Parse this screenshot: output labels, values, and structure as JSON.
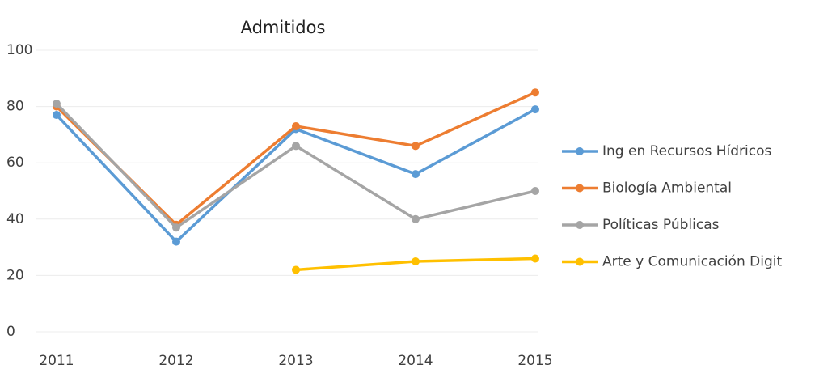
{
  "chart_data": {
    "type": "line",
    "title": "Admitidos",
    "categories": [
      "2011",
      "2012",
      "2013",
      "2014",
      "2015"
    ],
    "series": [
      {
        "name": "Ing en Recursos Hídricos",
        "color": "#5b9bd5",
        "values": [
          77,
          32,
          72,
          56,
          79
        ]
      },
      {
        "name": "Biología Ambiental",
        "color": "#ed7d31",
        "values": [
          80,
          38,
          73,
          66,
          85
        ]
      },
      {
        "name": "Políticas Públicas",
        "color": "#a5a5a5",
        "values": [
          81,
          37,
          66,
          40,
          50
        ]
      },
      {
        "name": "Arte y Comunicación Digit",
        "color": "#ffc000",
        "values": [
          null,
          null,
          22,
          25,
          26
        ]
      }
    ],
    "ylim": [
      0,
      100
    ],
    "yticks": [
      0,
      20,
      40,
      60,
      80,
      100
    ],
    "grid": true,
    "legend": "right"
  }
}
